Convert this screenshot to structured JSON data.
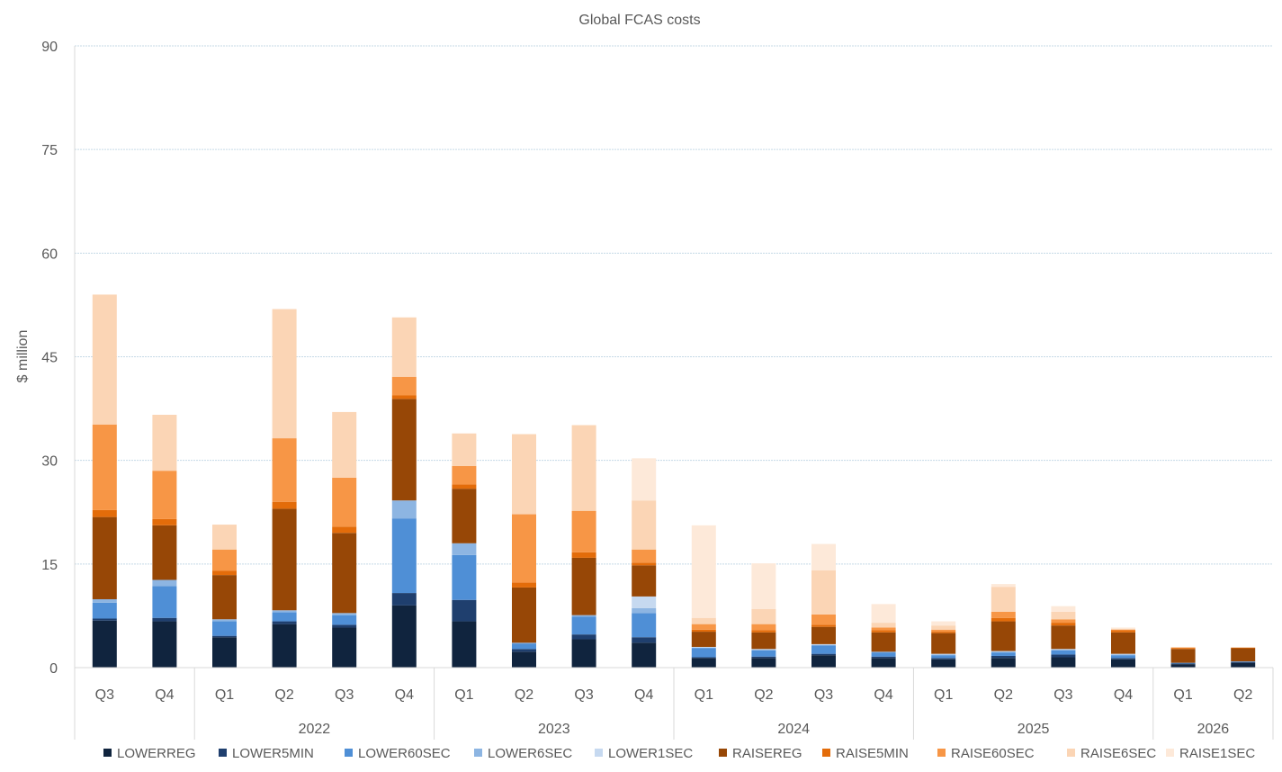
{
  "chart_data": {
    "type": "bar",
    "stacked": true,
    "title": "Global FCAS costs",
    "xlabel": "",
    "ylabel": "$ million",
    "ylim": [
      0,
      90
    ],
    "yticks": [
      "0",
      "15",
      "30",
      "45",
      "60",
      "75",
      "90"
    ],
    "grid": "horizontal",
    "legend": "bottom",
    "categories": [
      "Q3",
      "Q4",
      "Q1",
      "Q2",
      "Q3",
      "Q4",
      "Q1",
      "Q2",
      "Q3",
      "Q4",
      "Q1",
      "Q2",
      "Q3",
      "Q4",
      "Q1",
      "Q2",
      "Q3",
      "Q4",
      "Q1",
      "Q2"
    ],
    "year_groups": [
      {
        "label": "",
        "count": 2
      },
      {
        "label": "2022",
        "count": 4
      },
      {
        "label": "2023",
        "count": 4
      },
      {
        "label": "2024",
        "count": 4
      },
      {
        "label": "2025",
        "count": 4
      },
      {
        "label": "2026",
        "count": 2
      }
    ],
    "series": [
      {
        "name": "LOWERREG",
        "color": "#10243e",
        "values": [
          6.8,
          6.7,
          4.4,
          6.3,
          5.8,
          9.0,
          6.7,
          2.3,
          4.1,
          3.6,
          1.4,
          1.4,
          1.8,
          1.4,
          1.2,
          1.4,
          1.5,
          1.2,
          0.5,
          0.7
        ]
      },
      {
        "name": "LOWER5MIN",
        "color": "#1f3f6e",
        "values": [
          0.3,
          0.5,
          0.2,
          0.4,
          0.4,
          1.8,
          3.1,
          0.4,
          0.7,
          0.8,
          0.1,
          0.2,
          0.2,
          0.2,
          0.2,
          0.3,
          0.4,
          0.2,
          0.1,
          0.1
        ]
      },
      {
        "name": "LOWER60SEC",
        "color": "#4f8fd6",
        "values": [
          2.3,
          4.6,
          2.1,
          1.3,
          1.4,
          10.8,
          6.5,
          0.8,
          2.6,
          3.5,
          1.3,
          0.9,
          1.2,
          0.6,
          0.4,
          0.5,
          0.6,
          0.4,
          0.1,
          0.1
        ]
      },
      {
        "name": "LOWER6SEC",
        "color": "#8db5e2",
        "values": [
          0.5,
          0.9,
          0.3,
          0.3,
          0.3,
          2.6,
          1.7,
          0.1,
          0.2,
          0.7,
          0.1,
          0.1,
          0.1,
          0.1,
          0.1,
          0.1,
          0.1,
          0.1,
          0.0,
          0.0
        ]
      },
      {
        "name": "LOWER1SEC",
        "color": "#c6d9f0",
        "values": [
          0.0,
          0.0,
          0.0,
          0.0,
          0.0,
          0.0,
          0.0,
          0.0,
          0.0,
          1.7,
          0.1,
          0.1,
          0.1,
          0.0,
          0.1,
          0.1,
          0.1,
          0.1,
          0.0,
          0.0
        ]
      },
      {
        "name": "RAISEREG",
        "color": "#974706",
        "values": [
          11.9,
          7.9,
          6.4,
          14.7,
          11.6,
          14.7,
          7.9,
          8.0,
          8.3,
          4.5,
          2.2,
          2.4,
          2.5,
          2.8,
          3.0,
          4.3,
          3.4,
          3.1,
          2.0,
          1.9
        ]
      },
      {
        "name": "RAISE5MIN",
        "color": "#e36c0a",
        "values": [
          1.0,
          0.9,
          0.6,
          1.0,
          0.9,
          0.5,
          0.6,
          0.7,
          0.8,
          0.4,
          0.3,
          0.3,
          0.3,
          0.3,
          0.2,
          0.5,
          0.4,
          0.3,
          0.1,
          0.1
        ]
      },
      {
        "name": "RAISE60SEC",
        "color": "#f79646",
        "values": [
          12.4,
          7.0,
          3.1,
          9.2,
          7.1,
          2.7,
          2.7,
          9.9,
          6.0,
          1.9,
          0.8,
          0.9,
          1.5,
          0.4,
          0.3,
          0.9,
          0.5,
          0.1,
          0.1,
          0.0
        ]
      },
      {
        "name": "RAISE6SEC",
        "color": "#fbd5b5",
        "values": [
          18.8,
          8.1,
          3.6,
          18.7,
          9.5,
          8.6,
          4.7,
          11.6,
          12.4,
          7.1,
          0.9,
          2.2,
          6.4,
          0.7,
          0.6,
          3.6,
          1.1,
          0.1,
          0.1,
          0.0
        ]
      },
      {
        "name": "RAISE1SEC",
        "color": "#fde9d9",
        "values": [
          0.0,
          0.0,
          0.0,
          0.0,
          0.0,
          0.0,
          0.0,
          0.0,
          0.0,
          6.1,
          13.4,
          6.6,
          3.8,
          2.7,
          0.6,
          0.4,
          0.8,
          0.2,
          0.0,
          0.0
        ]
      }
    ]
  }
}
